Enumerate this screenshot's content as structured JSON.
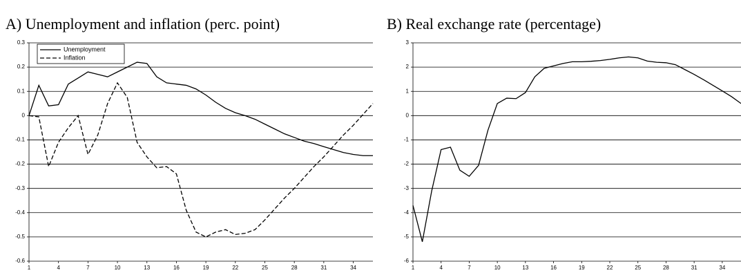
{
  "chart_data": [
    {
      "type": "line",
      "title": "A) Unemployment and inflation (perc. point)",
      "x": [
        1,
        2,
        3,
        4,
        5,
        6,
        7,
        8,
        9,
        10,
        11,
        12,
        13,
        14,
        15,
        16,
        17,
        18,
        19,
        20,
        21,
        22,
        23,
        24,
        25,
        26,
        27,
        28,
        29,
        30,
        31,
        32,
        33,
        34,
        35,
        36
      ],
      "xlim": [
        1,
        36
      ],
      "xticks": [
        1,
        4,
        7,
        10,
        13,
        16,
        19,
        22,
        25,
        28,
        31,
        34
      ],
      "ylim": [
        -0.6,
        0.3
      ],
      "yticks": [
        -0.6,
        -0.5,
        -0.4,
        -0.3,
        -0.2,
        -0.1,
        0,
        0.1,
        0.2,
        0.3
      ],
      "grid": true,
      "legend": "upper left",
      "series": [
        {
          "name": "Unemployment",
          "color": "#000000",
          "dash": false,
          "values": [
            0,
            0.125,
            0.04,
            0.045,
            0.13,
            0.155,
            0.18,
            0.17,
            0.16,
            0.18,
            0.2,
            0.22,
            0.215,
            0.16,
            0.135,
            0.13,
            0.125,
            0.11,
            0.085,
            0.055,
            0.03,
            0.012,
            0,
            -0.015,
            -0.035,
            -0.055,
            -0.075,
            -0.09,
            -0.105,
            -0.115,
            -0.128,
            -0.14,
            -0.152,
            -0.16,
            -0.165,
            -0.165
          ]
        },
        {
          "name": "Inflation",
          "color": "#000000",
          "dash": true,
          "values": [
            0,
            -0.005,
            -0.21,
            -0.11,
            -0.05,
            0,
            -0.16,
            -0.08,
            0.05,
            0.135,
            0.075,
            -0.11,
            -0.17,
            -0.215,
            -0.21,
            -0.24,
            -0.39,
            -0.48,
            -0.5,
            -0.48,
            -0.47,
            -0.49,
            -0.485,
            -0.47,
            -0.43,
            -0.385,
            -0.34,
            -0.3,
            -0.255,
            -0.21,
            -0.17,
            -0.125,
            -0.08,
            -0.04,
            0.005,
            0.05
          ]
        }
      ]
    },
    {
      "type": "line",
      "title": "B) Real exchange rate (percentage)",
      "x": [
        1,
        2,
        3,
        4,
        5,
        6,
        7,
        8,
        9,
        10,
        11,
        12,
        13,
        14,
        15,
        16,
        17,
        18,
        19,
        20,
        21,
        22,
        23,
        24,
        25,
        26,
        27,
        28,
        29,
        30,
        31,
        32,
        33,
        34,
        35,
        36
      ],
      "xlim": [
        1,
        36
      ],
      "xticks": [
        1,
        4,
        7,
        10,
        13,
        16,
        19,
        22,
        25,
        28,
        31,
        34
      ],
      "ylim": [
        -6,
        3
      ],
      "yticks": [
        -6,
        -5,
        -4,
        -3,
        -2,
        -1,
        0,
        1,
        2,
        3
      ],
      "grid": true,
      "series": [
        {
          "color": "#000000",
          "dash": false,
          "values": [
            -3.7,
            -5.2,
            -3.1,
            -1.4,
            -1.3,
            -2.25,
            -2.5,
            -2.05,
            -0.6,
            0.5,
            0.72,
            0.7,
            0.95,
            1.6,
            1.95,
            2.05,
            2.15,
            2.22,
            2.22,
            2.24,
            2.27,
            2.32,
            2.38,
            2.42,
            2.38,
            2.25,
            2.2,
            2.18,
            2.1,
            1.9,
            1.7,
            1.48,
            1.25,
            1.02,
            0.78,
            0.5
          ]
        }
      ]
    }
  ]
}
